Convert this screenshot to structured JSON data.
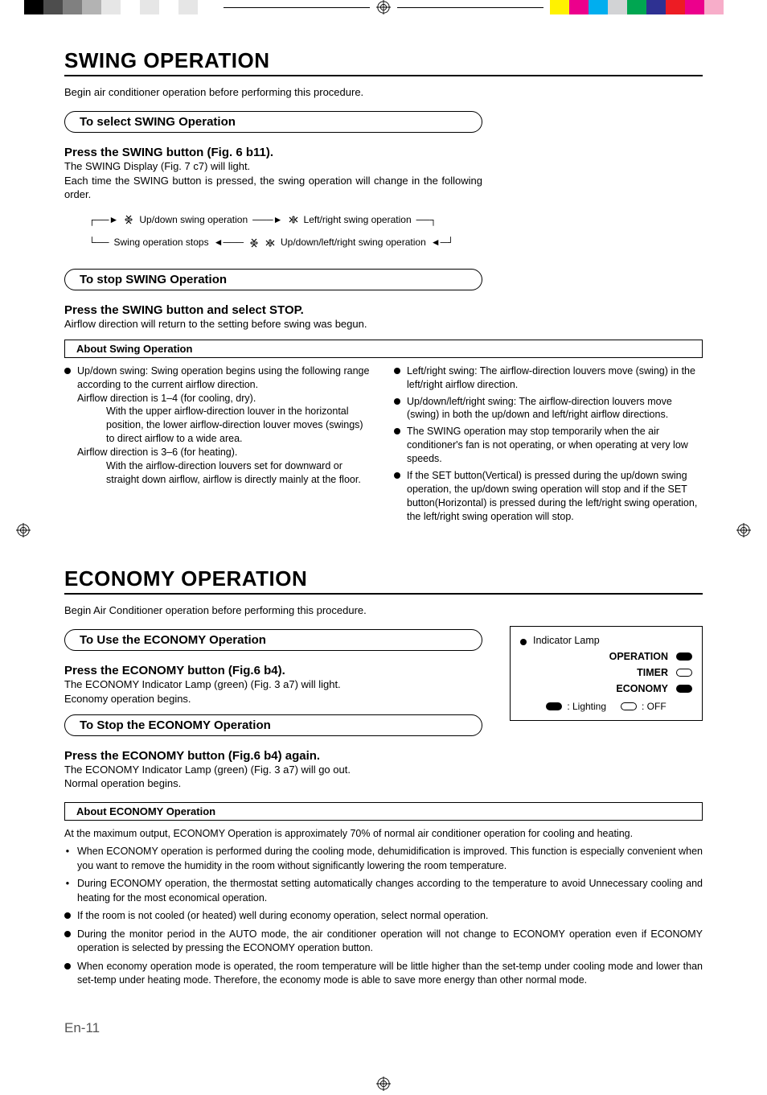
{
  "cropColors": {
    "left": [
      "#000000",
      "#4d4d4d",
      "#808080",
      "#b3b3b3",
      "#e6e6e6",
      "#ffffff",
      "#e6e6e6",
      "#ffffff",
      "#e6e6e6",
      "#ffffff"
    ],
    "right": [
      "#fff200",
      "#ec008c",
      "#00aeef",
      "#d2d3d5",
      "#00a651",
      "#2e3192",
      "#ed1c24",
      "#ec008c",
      "#f7adc9",
      "#ffffff"
    ]
  },
  "swing": {
    "title": "SWING OPERATION",
    "intro": "Begin air conditioner operation before performing this procedure.",
    "selectHeader": "To select SWING Operation",
    "pressSwing": "Press the SWING button (Fig. 6 b11).",
    "swingDisplay": "The SWING Display (Fig. 7 c7) will light.",
    "eachTime": "Each time the SWING button is pressed, the swing operation will change in the following order.",
    "flow": {
      "updown": "Up/down swing operation",
      "leftright": "Left/right swing operation",
      "stops": "Swing operation stops",
      "all": "Up/down/left/right swing operation"
    },
    "stopHeader": "To stop SWING Operation",
    "pressStop": "Press the SWING button and select STOP.",
    "stopText": "Airflow direction will return to the setting before swing was begun.",
    "aboutHeader": "About Swing Operation",
    "leftCol": {
      "b1": "Up/down swing: Swing operation begins using the following range according to the current airflow direction.",
      "l1": "Airflow direction is 1–4 (for cooling, dry).",
      "l1d": "With the upper airflow-direction louver in the horizontal position, the lower airflow-direction louver moves (swings) to direct airflow to a wide area.",
      "l2": "Airflow direction is 3–6 (for heating).",
      "l2d": "With the airflow-direction louvers set for downward or straight down airflow, airflow is directly mainly at the floor."
    },
    "rightCol": {
      "b1": "Left/right swing: The airflow-direction louvers move (swing) in the left/right airflow direction.",
      "b2": "Up/down/left/right swing: The airflow-direction louvers move (swing) in both the up/down and left/right airflow directions.",
      "b3": "The SWING operation may stop temporarily when the air conditioner's fan is not operating, or when operating at very low speeds.",
      "b4": "If the SET button(Vertical) is pressed during the up/down swing operation, the up/down swing operation will stop and if the SET button(Horizontal) is pressed during the left/right swing operation, the left/right swing operation will stop."
    }
  },
  "economy": {
    "title": "ECONOMY OPERATION",
    "intro": "Begin Air Conditioner operation before performing this procedure.",
    "useHeader": "To Use the ECONOMY Operation",
    "pressUse": "Press the ECONOMY button (Fig.6 b4).",
    "useText1": "The ECONOMY Indicator Lamp (green) (Fig. 3 a7) will light.",
    "useText2": "Economy operation begins.",
    "stopHeader": "To Stop the ECONOMY Operation",
    "pressStop": "Press the ECONOMY button (Fig.6 b4) again.",
    "stopText1": "The ECONOMY Indicator Lamp (green) (Fig. 3 a7) will go out.",
    "stopText2": "Normal operation begins.",
    "indicator": {
      "title": "Indicator Lamp",
      "rows": [
        {
          "label": "OPERATION",
          "on": true
        },
        {
          "label": "TIMER",
          "on": false
        },
        {
          "label": "ECONOMY",
          "on": true
        }
      ],
      "legendOn": ":  Lighting",
      "legendOff": ": OFF"
    },
    "aboutHeader": "About ECONOMY Operation",
    "about": [
      {
        "marker": "text",
        "text": "At the maximum output, ECONOMY Operation is approximately 70% of normal air conditioner operation for cooling and heating."
      },
      {
        "marker": "dash",
        "text": "When ECONOMY operation is performed during the cooling mode, dehumidification is improved. This function is especially convenient when you want to remove the humidity in the room without significantly lowering the room temperature."
      },
      {
        "marker": "dash",
        "text": "During ECONOMY operation, the thermostat setting automatically changes according to the temperature to avoid Unnecessary cooling and heating for the most economical operation."
      },
      {
        "marker": "dot",
        "text": "If the room is not cooled (or heated) well during economy operation, select normal operation."
      },
      {
        "marker": "dot",
        "text": "During the monitor period in the AUTO mode, the air conditioner operation will not change to ECONOMY operation even if ECONOMY operation is selected by pressing the ECONOMY operation button."
      },
      {
        "marker": "dot",
        "text": "When economy operation mode is operated, the room temperature will be little higher than the set-temp under cooling mode and lower than set-temp under heating mode. Therefore, the economy mode is able to save more energy than other normal mode."
      }
    ]
  },
  "pageNum": "En-11"
}
